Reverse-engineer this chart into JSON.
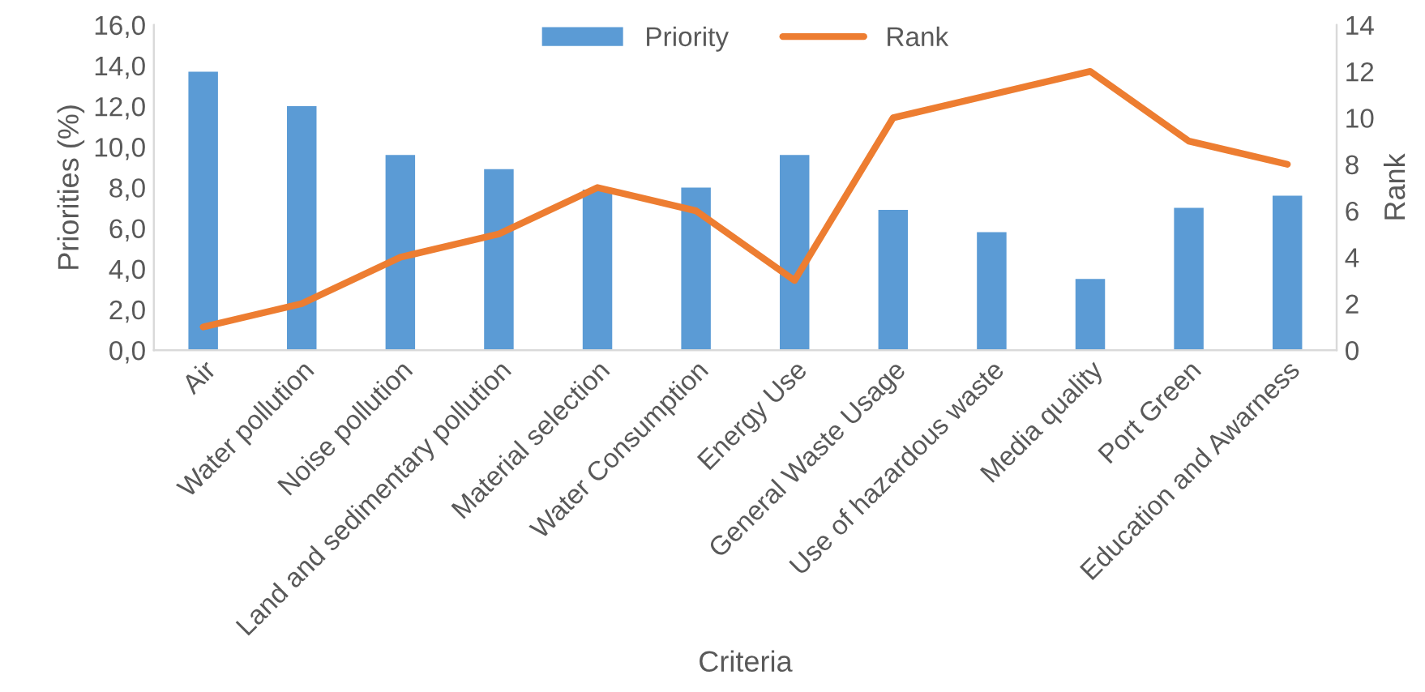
{
  "chart_data": {
    "type": "bar",
    "xlabel": "Criteria",
    "ylabel": "Priorities (%)",
    "y2label": "Rank",
    "categories": [
      "Air",
      "Water pollution",
      "Noise pollution",
      "Land and sedimentary pollution",
      "Material selection",
      "Water Consumption",
      "Energy Use",
      "General Waste Usage",
      "Use of hazardous waste",
      "Media quality",
      "Port Green",
      "Education and Awarness"
    ],
    "series": [
      {
        "name": "Priority",
        "color": "#5b9bd5",
        "values": [
          13.7,
          12.0,
          9.6,
          8.9,
          7.9,
          8.0,
          9.6,
          6.9,
          5.8,
          3.5,
          7.0,
          7.6
        ]
      },
      {
        "name": "Rank",
        "type": "line",
        "axis": "y2",
        "color": "#ed7d31",
        "values": [
          1,
          2,
          4,
          5,
          7,
          6,
          3,
          10,
          11,
          12,
          9,
          8
        ]
      }
    ],
    "ylim": [
      0,
      16
    ],
    "yticks": [
      {
        "value": 0,
        "label": "0,0"
      },
      {
        "value": 2,
        "label": "2,0"
      },
      {
        "value": 4,
        "label": "4,0"
      },
      {
        "value": 6,
        "label": "6,0"
      },
      {
        "value": 8,
        "label": "8,0"
      },
      {
        "value": 10,
        "label": "10,0"
      },
      {
        "value": 12,
        "label": "12,0"
      },
      {
        "value": 14,
        "label": "14,0"
      },
      {
        "value": 16,
        "label": "16,0"
      }
    ],
    "y2lim": [
      0,
      14
    ],
    "y2ticks": [
      0,
      2,
      4,
      6,
      8,
      10,
      12,
      14
    ],
    "legend": "top",
    "grid": false,
    "marker": "none"
  }
}
